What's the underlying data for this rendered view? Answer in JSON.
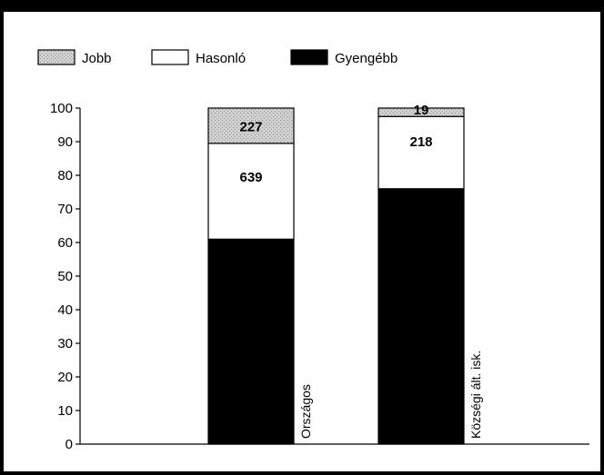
{
  "chart_data": {
    "type": "bar",
    "stacked": true,
    "categories": [
      "Országos",
      "Községi ált. isk."
    ],
    "series": [
      {
        "name": "Gyengébb",
        "values": [
          61,
          76
        ],
        "color": "#000000",
        "labels": [
          "",
          ""
        ]
      },
      {
        "name": "Hasonló",
        "values": [
          28.5,
          21.5
        ],
        "color": "#ffffff",
        "labels": [
          "639",
          "218"
        ]
      },
      {
        "name": "Jobb",
        "values": [
          10.5,
          2.5
        ],
        "color": "#c8c8c8",
        "labels": [
          "227",
          "19"
        ]
      }
    ],
    "legend_order": [
      "Jobb",
      "Hasonló",
      "Gyengébb"
    ],
    "ylim": [
      0,
      100
    ],
    "yticks": [
      "0",
      "10",
      "20",
      "30",
      "40",
      "50",
      "60",
      "70",
      "80",
      "90",
      "100"
    ],
    "legend_position": "top-left",
    "grid": false,
    "title": "",
    "xlabel": "",
    "ylabel": ""
  }
}
